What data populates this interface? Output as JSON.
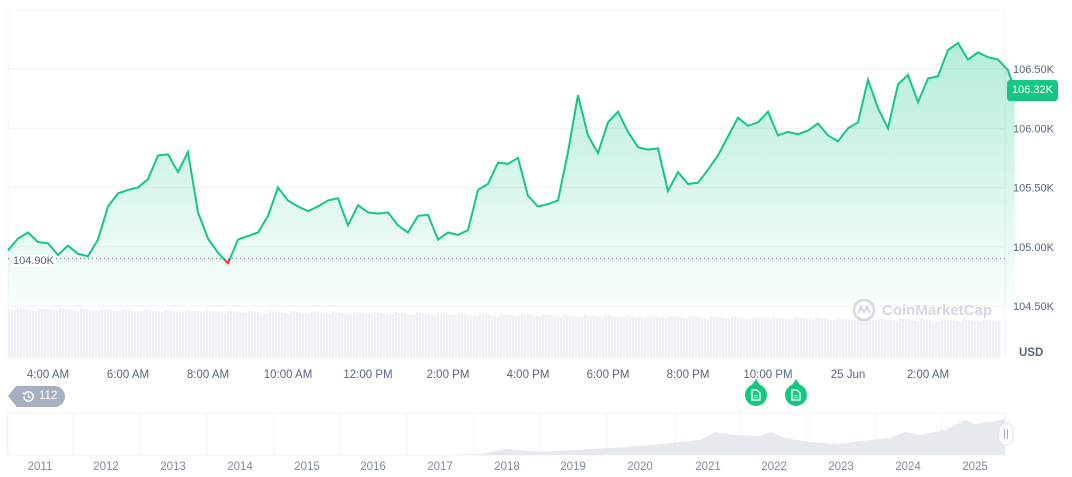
{
  "chart_data": {
    "type": "area",
    "currency_label": "USD",
    "current_price_label": "106.32K",
    "baseline_label": "104.90K",
    "baseline_value": 104.9,
    "y_unit": "K USD",
    "ylim": [
      104.4,
      106.95
    ],
    "y_ticks": [
      {
        "value": 106.5,
        "label": "106.50K"
      },
      {
        "value": 106.0,
        "label": "106.00K"
      },
      {
        "value": 105.5,
        "label": "105.50K"
      },
      {
        "value": 105.0,
        "label": "105.00K"
      },
      {
        "value": 104.5,
        "label": "104.50K"
      }
    ],
    "x_ticks": [
      {
        "time": "04:00",
        "label": "4:00 AM"
      },
      {
        "time": "06:00",
        "label": "6:00 AM"
      },
      {
        "time": "08:00",
        "label": "8:00 AM"
      },
      {
        "time": "10:00",
        "label": "10:00 AM"
      },
      {
        "time": "12:00",
        "label": "12:00 PM"
      },
      {
        "time": "14:00",
        "label": "2:00 PM"
      },
      {
        "time": "16:00",
        "label": "4:00 PM"
      },
      {
        "time": "18:00",
        "label": "6:00 PM"
      },
      {
        "time": "20:00",
        "label": "8:00 PM"
      },
      {
        "time": "22:00",
        "label": "10:00 PM"
      },
      {
        "time": "24:00",
        "label": "25 Jun"
      },
      {
        "time": "26:00",
        "label": "2:00 AM"
      }
    ],
    "colors": {
      "up": "#16c784",
      "down": "#ea3943",
      "badge": "#16c784"
    },
    "grid": true,
    "series": [
      [
        "03:00",
        104.97
      ],
      [
        "03:15",
        105.07
      ],
      [
        "03:30",
        105.12
      ],
      [
        "03:45",
        105.04
      ],
      [
        "04:00",
        105.03
      ],
      [
        "04:15",
        104.93
      ],
      [
        "04:30",
        105.01
      ],
      [
        "04:45",
        104.94
      ],
      [
        "05:00",
        104.92
      ],
      [
        "05:15",
        105.06
      ],
      [
        "05:30",
        105.34
      ],
      [
        "05:45",
        105.45
      ],
      [
        "06:00",
        105.48
      ],
      [
        "06:15",
        105.5
      ],
      [
        "06:30",
        105.57
      ],
      [
        "06:45",
        105.77
      ],
      [
        "07:00",
        105.78
      ],
      [
        "07:15",
        105.63
      ],
      [
        "07:30",
        105.8
      ],
      [
        "07:45",
        105.29
      ],
      [
        "08:00",
        105.07
      ],
      [
        "08:15",
        104.95
      ],
      [
        "08:30",
        104.86
      ],
      [
        "08:45",
        105.06
      ],
      [
        "09:00",
        105.09
      ],
      [
        "09:15",
        105.12
      ],
      [
        "09:30",
        105.26
      ],
      [
        "09:45",
        105.5
      ],
      [
        "10:00",
        105.39
      ],
      [
        "10:15",
        105.34
      ],
      [
        "10:30",
        105.3
      ],
      [
        "10:45",
        105.34
      ],
      [
        "11:00",
        105.39
      ],
      [
        "11:15",
        105.41
      ],
      [
        "11:30",
        105.18
      ],
      [
        "11:45",
        105.35
      ],
      [
        "12:00",
        105.29
      ],
      [
        "12:15",
        105.28
      ],
      [
        "12:30",
        105.29
      ],
      [
        "12:45",
        105.18
      ],
      [
        "13:00",
        105.12
      ],
      [
        "13:15",
        105.26
      ],
      [
        "13:30",
        105.27
      ],
      [
        "13:45",
        105.06
      ],
      [
        "14:00",
        105.12
      ],
      [
        "14:15",
        105.1
      ],
      [
        "14:30",
        105.14
      ],
      [
        "14:45",
        105.48
      ],
      [
        "15:00",
        105.53
      ],
      [
        "15:15",
        105.71
      ],
      [
        "15:30",
        105.7
      ],
      [
        "15:45",
        105.75
      ],
      [
        "16:00",
        105.43
      ],
      [
        "16:15",
        105.34
      ],
      [
        "16:30",
        105.36
      ],
      [
        "16:45",
        105.39
      ],
      [
        "17:00",
        105.8
      ],
      [
        "17:15",
        106.28
      ],
      [
        "17:30",
        105.94
      ],
      [
        "17:45",
        105.79
      ],
      [
        "18:00",
        106.05
      ],
      [
        "18:15",
        106.14
      ],
      [
        "18:30",
        105.97
      ],
      [
        "18:45",
        105.84
      ],
      [
        "19:00",
        105.82
      ],
      [
        "19:15",
        105.83
      ],
      [
        "19:30",
        105.47
      ],
      [
        "19:45",
        105.63
      ],
      [
        "20:00",
        105.53
      ],
      [
        "20:15",
        105.54
      ],
      [
        "20:30",
        105.65
      ],
      [
        "20:45",
        105.77
      ],
      [
        "21:00",
        105.93
      ],
      [
        "21:15",
        106.09
      ],
      [
        "21:30",
        106.02
      ],
      [
        "21:45",
        106.05
      ],
      [
        "22:00",
        106.14
      ],
      [
        "22:15",
        105.94
      ],
      [
        "22:30",
        105.97
      ],
      [
        "22:45",
        105.95
      ],
      [
        "23:00",
        105.98
      ],
      [
        "23:15",
        106.04
      ],
      [
        "23:30",
        105.94
      ],
      [
        "23:45",
        105.89
      ],
      [
        "24:00",
        106.0
      ],
      [
        "24:15",
        106.05
      ],
      [
        "24:30",
        106.41
      ],
      [
        "24:45",
        106.17
      ],
      [
        "25:00",
        106.0
      ],
      [
        "25:15",
        106.37
      ],
      [
        "25:30",
        106.45
      ],
      [
        "25:45",
        106.22
      ],
      [
        "26:00",
        106.42
      ],
      [
        "26:15",
        106.44
      ],
      [
        "26:30",
        106.66
      ],
      [
        "26:45",
        106.72
      ],
      [
        "27:00",
        106.58
      ],
      [
        "27:15",
        106.64
      ],
      [
        "27:30",
        106.6
      ],
      [
        "27:45",
        106.58
      ],
      [
        "28:00",
        106.49
      ],
      [
        "28:10",
        106.32
      ]
    ],
    "navigator": {
      "year_labels": [
        "2011",
        "2012",
        "2013",
        "2014",
        "2015",
        "2016",
        "2017",
        "2018",
        "2019",
        "2020",
        "2021",
        "2022",
        "2023",
        "2024",
        "2025"
      ]
    }
  },
  "events": {
    "count": "112",
    "icon": "history-clock-icon",
    "markers": [
      {
        "time": "22:15",
        "icon": "document-icon"
      },
      {
        "time": "23:15",
        "icon": "document-icon"
      }
    ]
  },
  "watermark": "CoinMarketCap"
}
